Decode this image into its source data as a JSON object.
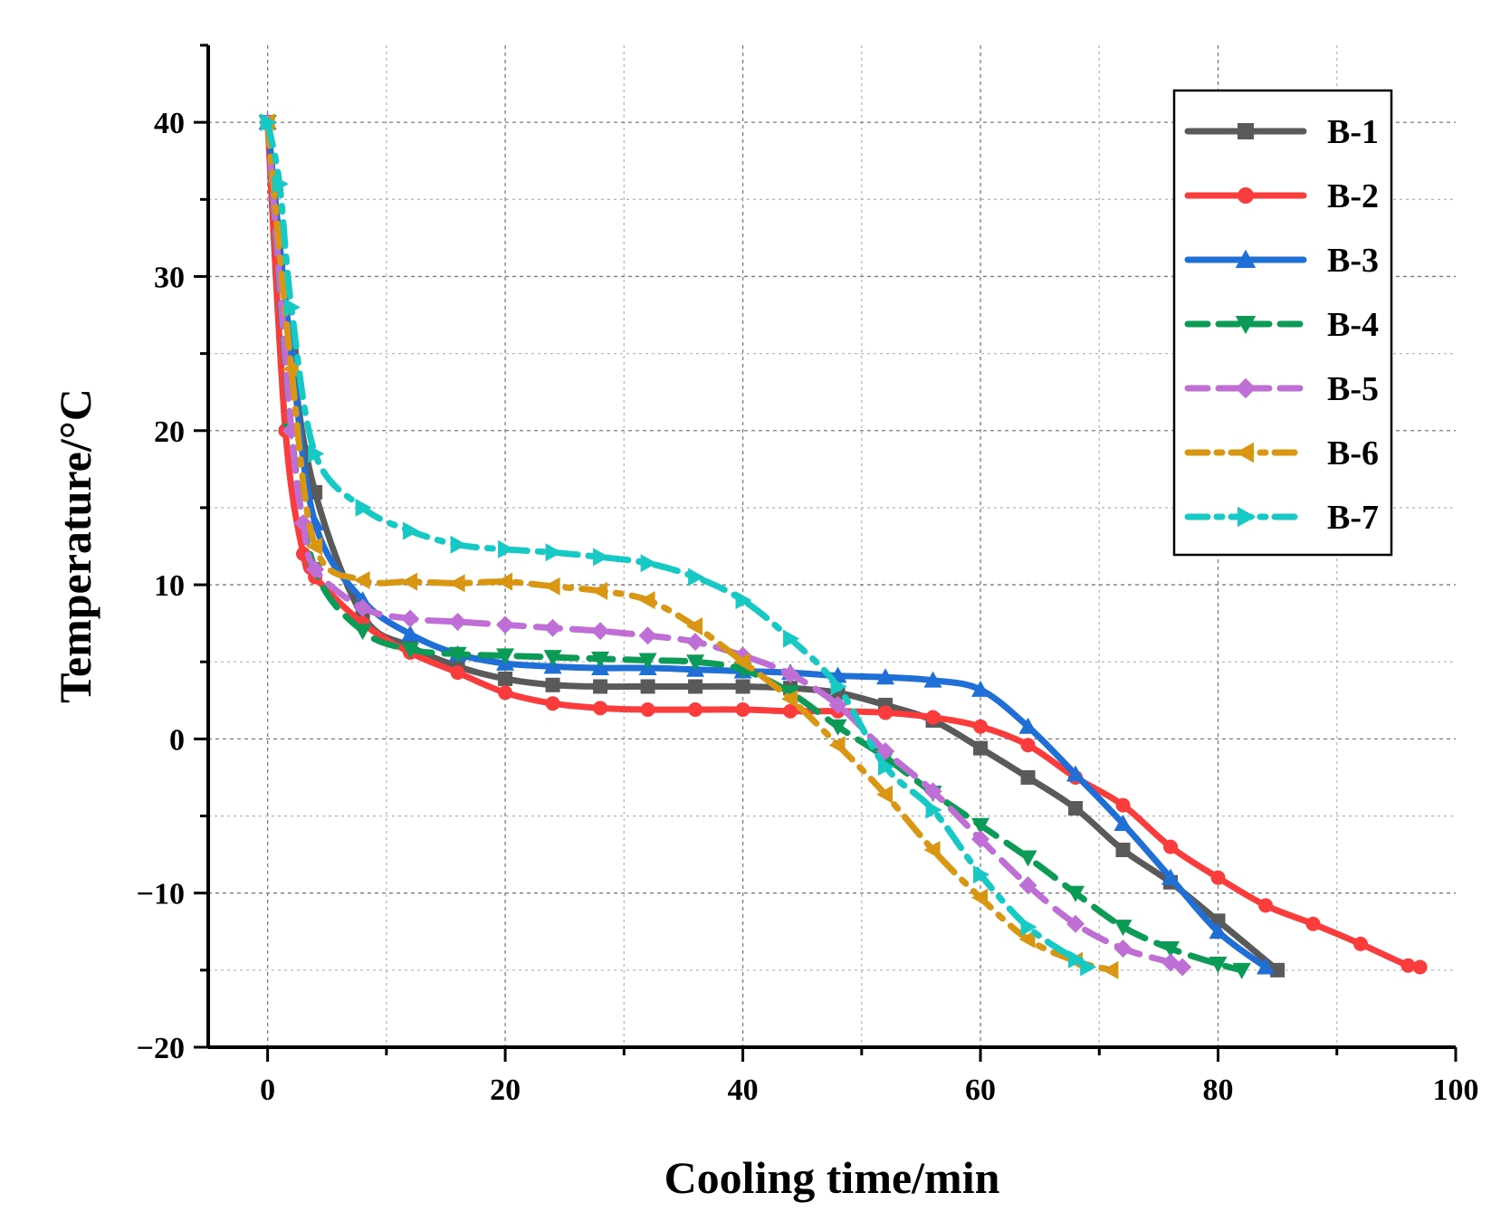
{
  "chart_data": {
    "type": "line",
    "title": "",
    "xlabel": "Cooling time/min",
    "ylabel": "Temperature/°C",
    "xlim": [
      -5,
      100
    ],
    "ylim": [
      -20,
      45
    ],
    "xticks": [
      0,
      20,
      40,
      60,
      80,
      100
    ],
    "yticks": [
      -20,
      -10,
      0,
      10,
      20,
      30,
      40
    ],
    "xtick_labels": [
      "0",
      "20",
      "40",
      "60",
      "80",
      "100"
    ],
    "ytick_labels": [
      "−20",
      "−10",
      "0",
      "10",
      "20",
      "30",
      "40"
    ],
    "grid": true,
    "legend_position": "top-right",
    "series": [
      {
        "name": "B-1",
        "color": "#5a5a5a",
        "marker": "square",
        "dash": "solid",
        "x": [
          0,
          2,
          4,
          8,
          12,
          16,
          20,
          24,
          28,
          32,
          36,
          40,
          44,
          48,
          52,
          56,
          60,
          64,
          68,
          72,
          76,
          80,
          85
        ],
        "y": [
          40,
          25,
          16,
          8,
          6,
          4.7,
          3.9,
          3.5,
          3.4,
          3.4,
          3.4,
          3.4,
          3.3,
          3.0,
          2.2,
          1.2,
          -0.6,
          -2.5,
          -4.5,
          -7.2,
          -9.3,
          -11.8,
          -15
        ]
      },
      {
        "name": "B-2",
        "color": "#fb3c3c",
        "marker": "circle",
        "dash": "solid",
        "x": [
          0,
          1.5,
          3,
          4,
          8,
          12,
          16,
          20,
          24,
          28,
          32,
          36,
          40,
          44,
          48,
          52,
          56,
          60,
          64,
          68,
          72,
          76,
          80,
          84,
          88,
          92,
          96,
          97
        ],
        "y": [
          40,
          20,
          12,
          10.5,
          7.5,
          5.6,
          4.3,
          3.0,
          2.3,
          2.0,
          1.9,
          1.9,
          1.9,
          1.8,
          1.8,
          1.7,
          1.4,
          0.8,
          -0.4,
          -2.5,
          -4.3,
          -7.0,
          -9.0,
          -10.8,
          -12.0,
          -13.3,
          -14.7,
          -14.8
        ]
      },
      {
        "name": "B-3",
        "color": "#1f6fd6",
        "marker": "triangle-up",
        "dash": "solid",
        "x": [
          0,
          2,
          4,
          8,
          12,
          16,
          20,
          24,
          28,
          32,
          36,
          40,
          44,
          48,
          52,
          56,
          60,
          64,
          68,
          72,
          76,
          80,
          84
        ],
        "y": [
          40,
          25,
          14,
          9,
          6.8,
          5.5,
          4.9,
          4.7,
          4.6,
          4.6,
          4.5,
          4.4,
          4.3,
          4.1,
          4.0,
          3.8,
          3.2,
          0.8,
          -2.3,
          -5.5,
          -9.0,
          -12.5,
          -14.8
        ]
      },
      {
        "name": "B-4",
        "color": "#0c9b57",
        "marker": "triangle-down",
        "dash": "dashed",
        "x": [
          0,
          2,
          4,
          8,
          12,
          16,
          20,
          24,
          28,
          32,
          36,
          40,
          44,
          48,
          52,
          56,
          60,
          64,
          68,
          72,
          76,
          80,
          82
        ],
        "y": [
          40,
          20,
          11,
          7,
          5.8,
          5.5,
          5.4,
          5.3,
          5.2,
          5.1,
          5.0,
          4.5,
          3.0,
          0.8,
          -1.2,
          -3.5,
          -5.6,
          -7.7,
          -10.0,
          -12.2,
          -13.6,
          -14.6,
          -15
        ]
      },
      {
        "name": "B-5",
        "color": "#bf6ed6",
        "marker": "diamond",
        "dash": "dashed",
        "x": [
          0,
          2,
          3,
          4,
          8,
          12,
          16,
          20,
          24,
          28,
          32,
          36,
          40,
          44,
          48,
          52,
          56,
          60,
          64,
          68,
          72,
          76,
          77
        ],
        "y": [
          40,
          20,
          14,
          11,
          8.5,
          7.8,
          7.6,
          7.4,
          7.2,
          7.0,
          6.7,
          6.3,
          5.4,
          4.2,
          2.2,
          -0.8,
          -3.4,
          -6.5,
          -9.5,
          -12.0,
          -13.6,
          -14.5,
          -14.8
        ]
      },
      {
        "name": "B-6",
        "color": "#d99612",
        "marker": "triangle-left",
        "dash": "dashdot",
        "x": [
          0,
          2,
          4,
          8,
          12,
          16,
          20,
          24,
          28,
          32,
          36,
          40,
          44,
          48,
          52,
          56,
          60,
          64,
          68,
          71
        ],
        "y": [
          40,
          24,
          12.5,
          10.3,
          10.2,
          10.1,
          10.2,
          9.9,
          9.6,
          9.0,
          7.3,
          5.0,
          2.6,
          -0.4,
          -3.6,
          -7.2,
          -10.3,
          -13.0,
          -14.4,
          -15
        ]
      },
      {
        "name": "B-7",
        "color": "#16c9c4",
        "marker": "triangle-right",
        "dash": "dashdot",
        "x": [
          0,
          1,
          2,
          4,
          8,
          12,
          16,
          20,
          24,
          28,
          32,
          36,
          40,
          44,
          48,
          52,
          56,
          60,
          64,
          68,
          69
        ],
        "y": [
          40,
          36,
          28,
          18.5,
          15,
          13.5,
          12.6,
          12.3,
          12.1,
          11.8,
          11.4,
          10.5,
          9.0,
          6.5,
          3.4,
          -1.8,
          -4.6,
          -8.8,
          -12.2,
          -14.3,
          -14.8
        ]
      }
    ]
  }
}
